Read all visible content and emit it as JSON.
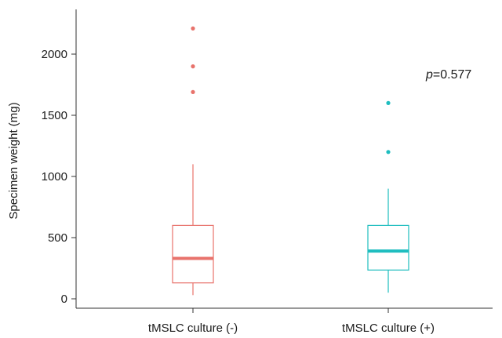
{
  "chart_data": {
    "type": "boxplot",
    "title": "",
    "xlabel": "",
    "ylabel": "Specimen weight (mg)",
    "ylim": [
      -50,
      2350
    ],
    "yticks": [
      0,
      500,
      1000,
      1500,
      2000
    ],
    "grid": false,
    "categories": [
      "tMSLC culture (-)",
      "tMSLC culture (+)"
    ],
    "series": [
      {
        "category": "tMSLC culture (-)",
        "color": "#E8736C",
        "whisker_low": 30,
        "q1": 130,
        "median": 330,
        "q3": 600,
        "whisker_high": 1100,
        "outliers": [
          1690,
          1900,
          2210
        ]
      },
      {
        "category": "tMSLC culture (+)",
        "color": "#1EBDBF",
        "whisker_low": 50,
        "q1": 235,
        "median": 390,
        "q3": 600,
        "whisker_high": 900,
        "outliers": [
          1200,
          1600
        ]
      }
    ],
    "annotation": {
      "p_label": "p",
      "p_value": "=0.577"
    }
  }
}
